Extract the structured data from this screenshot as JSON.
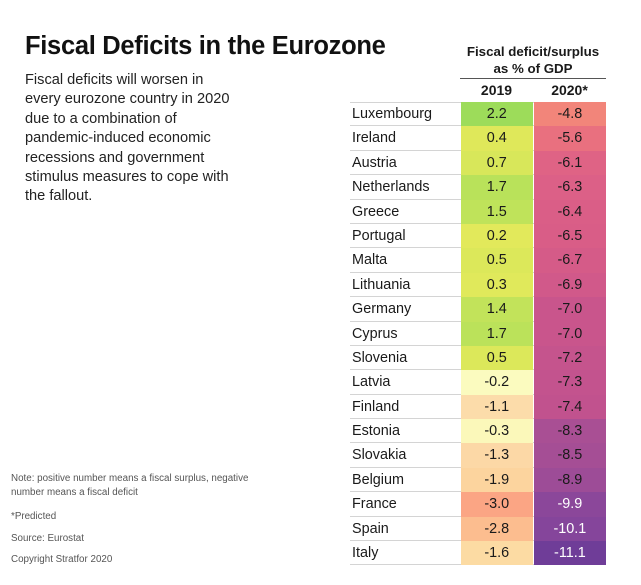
{
  "title": "Fiscal Deficits in the Eurozone",
  "subtitle": "Fiscal deficits will worsen in every eurozone country in 2020 due to a combination of pandemic-induced economic recessions and government stimulus measures to cope with the fallout.",
  "note": "Note: positive number means a fiscal surplus, negative number means a fiscal deficit",
  "footnote_predicted": "*Predicted",
  "source": "Source: Eurostat",
  "copyright": "Copyright Stratfor 2020",
  "chart_data": {
    "type": "heatmap",
    "title": "Fiscal Deficits in the Eurozone",
    "column_group_label_line1": "Fiscal deficit/surplus",
    "column_group_label_line2": "as % of GDP",
    "columns": [
      "2019",
      "2020*"
    ],
    "unit": "% of GDP",
    "rows": [
      {
        "country": "Luxembourg",
        "v2019": "2.2",
        "v2020": "-4.8",
        "c2019": "#9ddc5a",
        "c2020": "#f2857a",
        "light2020": false
      },
      {
        "country": "Ireland",
        "v2019": "0.4",
        "v2020": "-5.6",
        "c2019": "#dfe85a",
        "c2020": "#e9707f",
        "light2020": false
      },
      {
        "country": "Austria",
        "v2019": "0.7",
        "v2020": "-6.1",
        "c2019": "#d8e75a",
        "c2020": "#df6385",
        "light2020": false
      },
      {
        "country": "Netherlands",
        "v2019": "1.7",
        "v2020": "-6.3",
        "c2019": "#b9e25a",
        "c2020": "#dc6087",
        "light2020": false
      },
      {
        "country": "Greece",
        "v2019": "1.5",
        "v2020": "-6.4",
        "c2019": "#bfe35a",
        "c2020": "#da5e87",
        "light2020": false
      },
      {
        "country": "Portugal",
        "v2019": "0.2",
        "v2020": "-6.5",
        "c2019": "#e2e95b",
        "c2020": "#d95d87",
        "light2020": false
      },
      {
        "country": "Malta",
        "v2019": "0.5",
        "v2020": "-6.7",
        "c2019": "#dce85a",
        "c2020": "#d55b88",
        "light2020": false
      },
      {
        "country": "Lithuania",
        "v2019": "0.3",
        "v2020": "-6.9",
        "c2019": "#e0e95b",
        "c2020": "#d1598a",
        "light2020": false
      },
      {
        "country": "Germany",
        "v2019": "1.4",
        "v2020": "-7.0",
        "c2019": "#c2e35a",
        "c2020": "#c9558c",
        "light2020": false
      },
      {
        "country": "Cyprus",
        "v2019": "1.7",
        "v2020": "-7.0",
        "c2019": "#bbe25a",
        "c2020": "#c9558c",
        "light2020": false
      },
      {
        "country": "Slovenia",
        "v2019": "0.5",
        "v2020": "-7.2",
        "c2019": "#dce85a",
        "c2020": "#c5548d",
        "light2020": false
      },
      {
        "country": "Latvia",
        "v2019": "-0.2",
        "v2020": "-7.3",
        "c2019": "#fbfbbf",
        "c2020": "#c3538e",
        "light2020": false
      },
      {
        "country": "Finland",
        "v2019": "-1.1",
        "v2020": "-7.4",
        "c2019": "#fcdcaa",
        "c2020": "#c1528e",
        "light2020": false
      },
      {
        "country": "Estonia",
        "v2019": "-0.3",
        "v2020": "-8.3",
        "c2019": "#fbf8ba",
        "c2020": "#a94f94",
        "light2020": false
      },
      {
        "country": "Slovakia",
        "v2019": "-1.3",
        "v2020": "-8.5",
        "c2019": "#fcd8a6",
        "c2020": "#a54e95",
        "light2020": false
      },
      {
        "country": "Belgium",
        "v2019": "-1.9",
        "v2020": "-8.9",
        "c2019": "#fcd49e",
        "c2020": "#9d4c97",
        "light2020": false
      },
      {
        "country": "France",
        "v2019": "-3.0",
        "v2020": "-9.9",
        "c2019": "#fba584",
        "c2020": "#8b479a",
        "light2020": true
      },
      {
        "country": "Spain",
        "v2019": "-2.8",
        "v2020": "-10.1",
        "c2019": "#fcbd8f",
        "c2020": "#85459b",
        "light2020": true
      },
      {
        "country": "Italy",
        "v2019": "-1.6",
        "v2020": "-11.1",
        "c2019": "#fcdba3",
        "c2020": "#6f3d98",
        "light2020": true
      }
    ]
  }
}
